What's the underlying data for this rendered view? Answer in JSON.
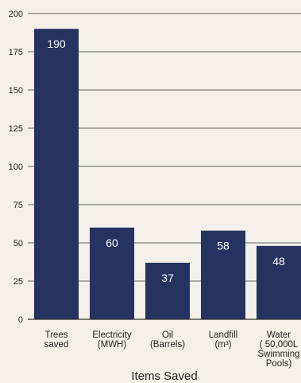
{
  "chart_data": {
    "type": "bar",
    "categories": [
      [
        "Trees",
        "saved"
      ],
      [
        "Electricity",
        "(MWH)"
      ],
      [
        "Oil",
        "(Barrels)"
      ],
      [
        "Landfill",
        "(m³)"
      ],
      [
        "Water",
        "( 50,000L",
        "Swimming",
        "Pools)"
      ]
    ],
    "values": [
      190,
      60,
      37,
      58,
      48
    ],
    "data_labels": [
      "190",
      "60",
      "37",
      "58",
      "48"
    ],
    "title": "",
    "xlabel": "Items Saved",
    "ylabel": "",
    "ylim": [
      0,
      200
    ],
    "yticks": [
      0,
      25,
      50,
      75,
      100,
      125,
      150,
      175,
      200
    ],
    "grid": true,
    "legend": "none",
    "colors": {
      "bar": "#263361",
      "grid": "#333333",
      "background": "#f3f0e9",
      "value_text": "#ffffff"
    }
  }
}
